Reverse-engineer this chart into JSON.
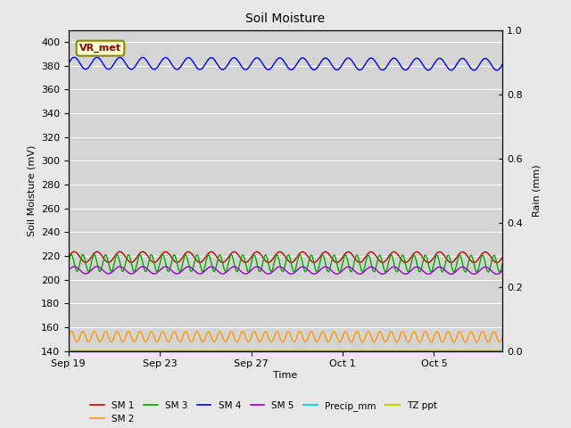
{
  "title": "Soil Moisture",
  "xlabel": "Time",
  "ylabel_left": "Soil Moisture (mV)",
  "ylabel_right": "Rain (mm)",
  "ylim_left": [
    140,
    410
  ],
  "ylim_right": [
    0.0,
    1.0
  ],
  "yticks_left": [
    140,
    160,
    180,
    200,
    220,
    240,
    260,
    280,
    300,
    320,
    340,
    360,
    380,
    400
  ],
  "yticks_right": [
    0.0,
    0.2,
    0.4,
    0.6,
    0.8,
    1.0
  ],
  "background_color": "#e8e8e8",
  "plot_bg_color": "#d4d4d4",
  "n_days": 19,
  "n_points": 1900,
  "series": {
    "SM1": {
      "color": "#cc0000",
      "label": "SM 1",
      "base": 219,
      "amp": 4.5,
      "period_days": 1.0,
      "trend": -0.0001
    },
    "SM2": {
      "color": "#ff9900",
      "label": "SM 2",
      "base": 152,
      "amp": 4.5,
      "period_days": 0.5,
      "trend": -0.0001
    },
    "SM3": {
      "color": "#00aa00",
      "label": "SM 3",
      "base": 214,
      "amp": 7.0,
      "period_days": 0.5,
      "trend": -0.0003
    },
    "SM4": {
      "color": "#0000ff",
      "label": "SM 4",
      "base": 382,
      "amp": 5.0,
      "period_days": 1.0,
      "trend": -0.0005
    },
    "SM5": {
      "color": "#9900cc",
      "label": "SM 5",
      "base": 208,
      "amp": 3.0,
      "period_days": 1.0,
      "trend": -0.0002
    },
    "Precip": {
      "color": "#00cccc",
      "label": "Precip_mm",
      "base": 140,
      "amp": 0,
      "period_days": 1.0,
      "trend": 0
    },
    "TZ": {
      "color": "#cccc00",
      "label": "TZ ppt",
      "base": 140,
      "amp": 0,
      "period_days": 1.0,
      "trend": 0
    }
  },
  "annotation_text": "VR_met",
  "annotation_bg": "#ffffcc",
  "annotation_border": "#888800",
  "annotation_text_color": "#880000",
  "xtick_labels": [
    "Sep 19",
    "Sep 23",
    "Sep 27",
    "Oct 1",
    "Oct 5"
  ],
  "xtick_positions_days": [
    0,
    4,
    8,
    12,
    16
  ],
  "legend_order": [
    "SM1",
    "SM2",
    "SM3",
    "SM4",
    "SM5",
    "Precip",
    "TZ"
  ]
}
